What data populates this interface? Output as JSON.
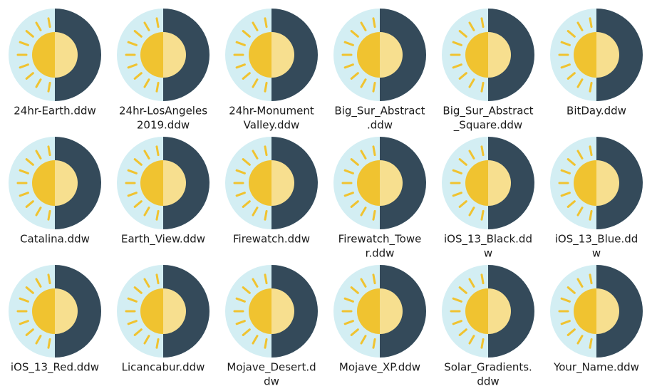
{
  "files": [
    {
      "lines": [
        "24hr-Earth.ddw"
      ]
    },
    {
      "lines": [
        "24hr-LosAngeles",
        "2019.ddw"
      ]
    },
    {
      "lines": [
        "24hr-Monument",
        "Valley.ddw"
      ]
    },
    {
      "lines": [
        "Big_Sur_Abstract",
        ".ddw"
      ]
    },
    {
      "lines": [
        "Big_Sur_Abstract",
        "_Square.ddw"
      ]
    },
    {
      "lines": [
        "BitDay.ddw"
      ]
    },
    {
      "lines": [
        "Catalina.ddw"
      ]
    },
    {
      "lines": [
        "Earth_View.ddw"
      ]
    },
    {
      "lines": [
        "Firewatch.ddw"
      ]
    },
    {
      "lines": [
        "Firewatch_Towe",
        "r.ddw"
      ]
    },
    {
      "lines": [
        "iOS_13_Black.dd",
        "w"
      ]
    },
    {
      "lines": [
        "iOS_13_Blue.dd",
        "w"
      ]
    },
    {
      "lines": [
        "iOS_13_Red.ddw"
      ]
    },
    {
      "lines": [
        "Licancabur.ddw"
      ]
    },
    {
      "lines": [
        "Mojave_Desert.d",
        "dw"
      ]
    },
    {
      "lines": [
        "Mojave_XP.ddw"
      ]
    },
    {
      "lines": [
        "Solar_Gradients.",
        "ddw"
      ]
    },
    {
      "lines": [
        "Your_Name.ddw"
      ]
    }
  ]
}
